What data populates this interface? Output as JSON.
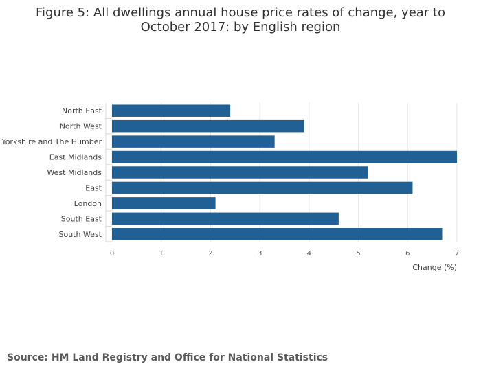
{
  "chart_data": {
    "type": "bar",
    "orientation": "horizontal",
    "title": "Figure 5: All dwellings annual house price rates of change, year to October 2017: by English region",
    "categories": [
      "North East",
      "North West",
      "Yorkshire and The Humber",
      "East Midlands",
      "West Midlands",
      "East",
      "London",
      "South East",
      "South West"
    ],
    "values": [
      2.4,
      3.9,
      3.3,
      7.0,
      5.2,
      6.1,
      2.1,
      4.6,
      6.7
    ],
    "xlabel": "Change (%)",
    "ylabel": "",
    "xlim": [
      0,
      7
    ],
    "xticks": [
      0,
      1,
      2,
      3,
      4,
      5,
      6,
      7
    ],
    "grid": true,
    "bar_color": "#206095"
  },
  "source": "Source: HM Land Registry and Office for National Statistics"
}
